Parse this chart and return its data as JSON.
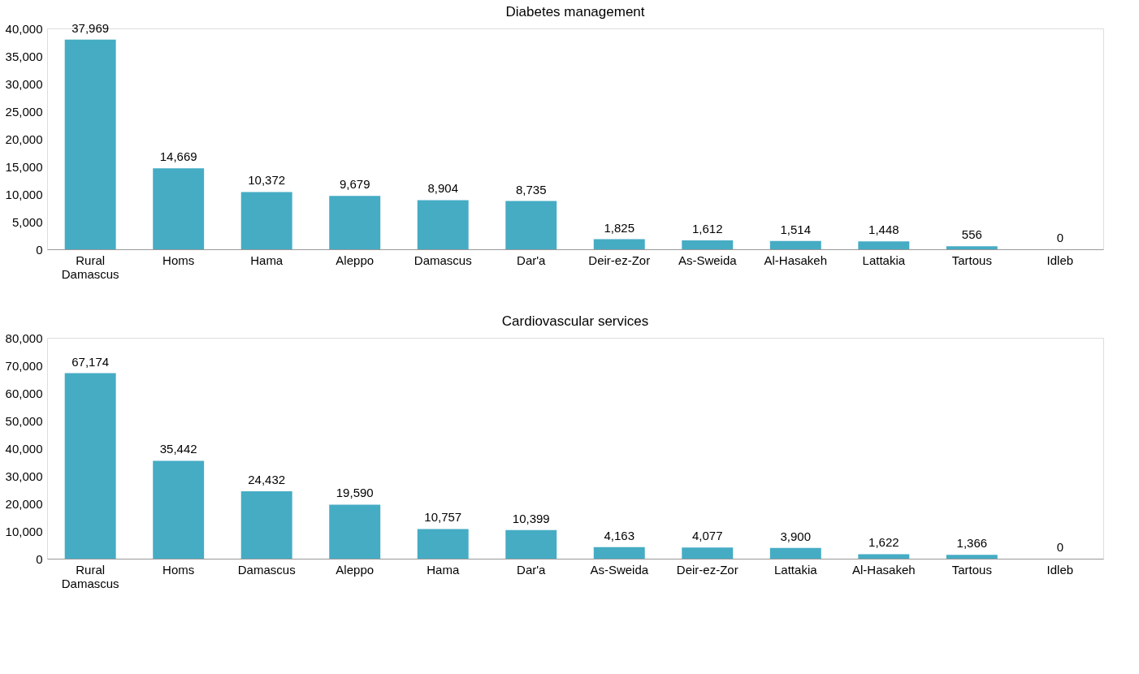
{
  "chart_data": [
    {
      "type": "bar",
      "title": "Diabetes management",
      "categories": [
        "Rural Damascus",
        "Homs",
        "Hama",
        "Aleppo",
        "Damascus",
        "Dar'a",
        "Deir-ez-Zor",
        "As-Sweida",
        "Al-Hasakeh",
        "Lattakia",
        "Tartous",
        "Idleb"
      ],
      "values": [
        37969,
        14669,
        10372,
        9679,
        8904,
        8735,
        1825,
        1612,
        1514,
        1448,
        556,
        0
      ],
      "value_labels": [
        "37,969",
        "14,669",
        "10,372",
        "9,679",
        "8,904",
        "8,735",
        "1,825",
        "1,612",
        "1,514",
        "1,448",
        "556",
        "0"
      ],
      "color": "#45acc4",
      "ylim": [
        0,
        40000
      ],
      "grid": false,
      "yticks": [
        0,
        {
          "value": 5000,
          "label": "5,000"
        },
        {
          "value": 10000,
          "label": "10,000"
        },
        {
          "value": 15000,
          "label": "15,000"
        },
        {
          "value": 20000,
          "label": "20,000"
        },
        {
          "value": 25000,
          "label": "25,000"
        },
        {
          "value": 30000,
          "label": "30,000"
        },
        {
          "value": 35000,
          "label": "35,000"
        },
        {
          "value": 40000,
          "label": "40,000"
        }
      ]
    },
    {
      "type": "bar",
      "title": "Cardiovascular services",
      "categories": [
        "Rural Damascus",
        "Homs",
        "Damascus",
        "Aleppo",
        "Hama",
        "Dar'a",
        "As-Sweida",
        "Deir-ez-Zor",
        "Lattakia",
        "Al-Hasakeh",
        "Tartous",
        "Idleb"
      ],
      "values": [
        67174,
        35442,
        24432,
        19590,
        10757,
        10399,
        4163,
        4077,
        3900,
        1622,
        1366,
        0
      ],
      "value_labels": [
        "67,174",
        "35,442",
        "24,432",
        "19,590",
        "10,757",
        "10,399",
        "4,163",
        "4,077",
        "3,900",
        "1,622",
        "1,366",
        "0"
      ],
      "color": "#45acc4",
      "ylim": [
        0,
        80000
      ],
      "grid": false,
      "yticks": [
        0,
        {
          "value": 10000,
          "label": "10,000"
        },
        {
          "value": 20000,
          "label": "20,000"
        },
        {
          "value": 30000,
          "label": "30,000"
        },
        {
          "value": 40000,
          "label": "40,000"
        },
        {
          "value": 50000,
          "label": "50,000"
        },
        {
          "value": 60000,
          "label": "60,000"
        },
        {
          "value": 70000,
          "label": "70,000"
        },
        {
          "value": 80000,
          "label": "80,000"
        }
      ]
    }
  ]
}
